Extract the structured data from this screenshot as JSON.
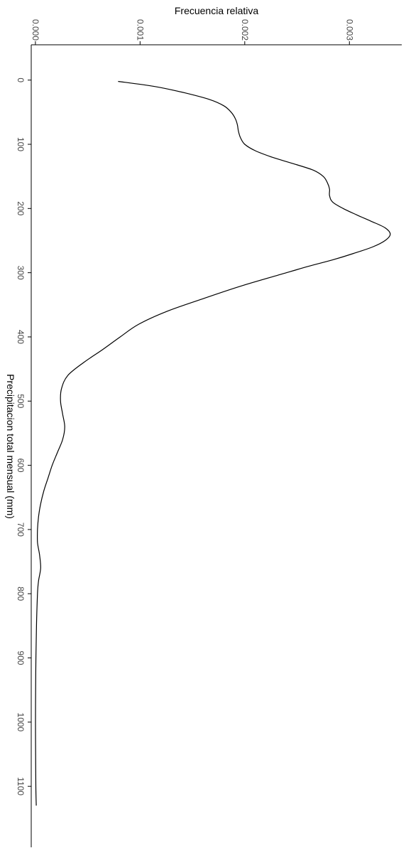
{
  "chart_data": {
    "type": "line",
    "orientation": "rotated-90-clockwise",
    "title": "",
    "xlabel": "Precipitacion total mensual (mm)",
    "ylabel": "Frecuencia relativa",
    "xlim": [
      -55,
      1195
    ],
    "ylim": [
      -4e-05,
      0.0035
    ],
    "x_ticks": [
      0,
      100,
      200,
      300,
      400,
      500,
      600,
      700,
      800,
      900,
      1000,
      1100
    ],
    "x_tick_labels": [
      "0",
      "100",
      "200",
      "300",
      "400",
      "500",
      "600",
      "700",
      "800",
      "900",
      "1000",
      "1100"
    ],
    "y_ticks": [
      0,
      0.001,
      0.002,
      0.003
    ],
    "y_tick_labels": [
      "0.000",
      "0.001",
      "0.002",
      "0.003"
    ],
    "grid": false,
    "legend": "none",
    "series": [
      {
        "x": [
          2,
          10,
          20,
          30,
          40,
          50,
          60,
          70,
          80,
          90,
          100,
          110,
          120,
          130,
          140,
          150,
          160,
          170,
          180,
          190,
          200,
          210,
          220,
          230,
          240,
          250,
          260,
          270,
          280,
          290,
          300,
          320,
          340,
          360,
          380,
          400,
          420,
          440,
          460,
          480,
          500,
          520,
          540,
          560,
          580,
          600,
          620,
          640,
          660,
          680,
          700,
          720,
          740,
          760,
          780,
          800,
          850,
          900,
          950,
          1000,
          1050,
          1100,
          1130
        ],
        "values": [
          0.00079,
          0.00114,
          0.00143,
          0.00166,
          0.0018,
          0.00187,
          0.00191,
          0.00193,
          0.00194,
          0.00196,
          0.002,
          0.0021,
          0.00226,
          0.00246,
          0.00265,
          0.00275,
          0.00279,
          0.00281,
          0.00281,
          0.00284,
          0.00294,
          0.00307,
          0.00321,
          0.00334,
          0.00339,
          0.00334,
          0.00322,
          0.00304,
          0.00284,
          0.00261,
          0.0024,
          0.00198,
          0.00161,
          0.00126,
          0.00099,
          0.00081,
          0.00064,
          0.00046,
          0.00031,
          0.00025,
          0.00024,
          0.00026,
          0.00028,
          0.00026,
          0.00021,
          0.00016,
          0.00012,
          8e-05,
          5e-05,
          3e-05,
          2e-05,
          2e-05,
          4e-05,
          5e-05,
          3e-05,
          2e-05,
          1e-05,
          5e-06,
          2e-06,
          1e-06,
          2e-06,
          4e-06,
          8e-06
        ]
      }
    ]
  }
}
